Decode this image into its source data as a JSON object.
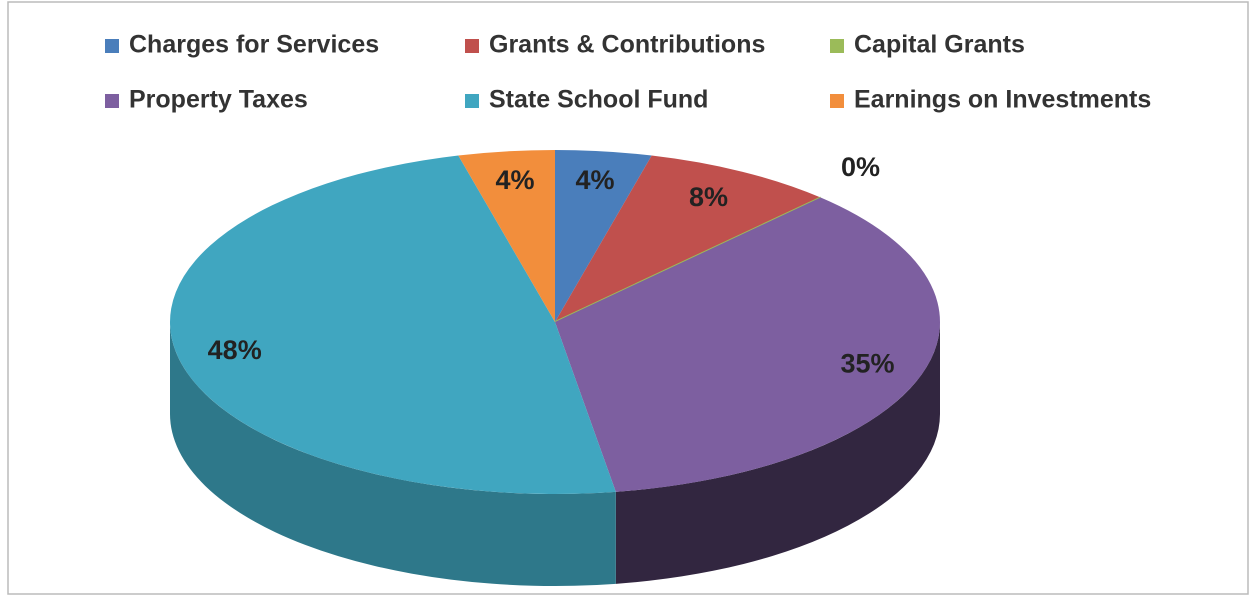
{
  "chart_data": {
    "type": "pie",
    "categories": [
      "Charges for Services",
      "Grants & Contributions",
      "Capital Grants",
      "Property Taxes",
      "State School Fund",
      "Earnings on Investments"
    ],
    "values": [
      4,
      8,
      0,
      35,
      48,
      4
    ],
    "value_labels": [
      "4%",
      "8%",
      "0%",
      "35%",
      "48%",
      "4%"
    ],
    "colors": [
      "#4a7ebb",
      "#c0504d",
      "#9bbb59",
      "#7d5fa0",
      "#40a6c0",
      "#f28e3c"
    ],
    "legend": "top"
  }
}
